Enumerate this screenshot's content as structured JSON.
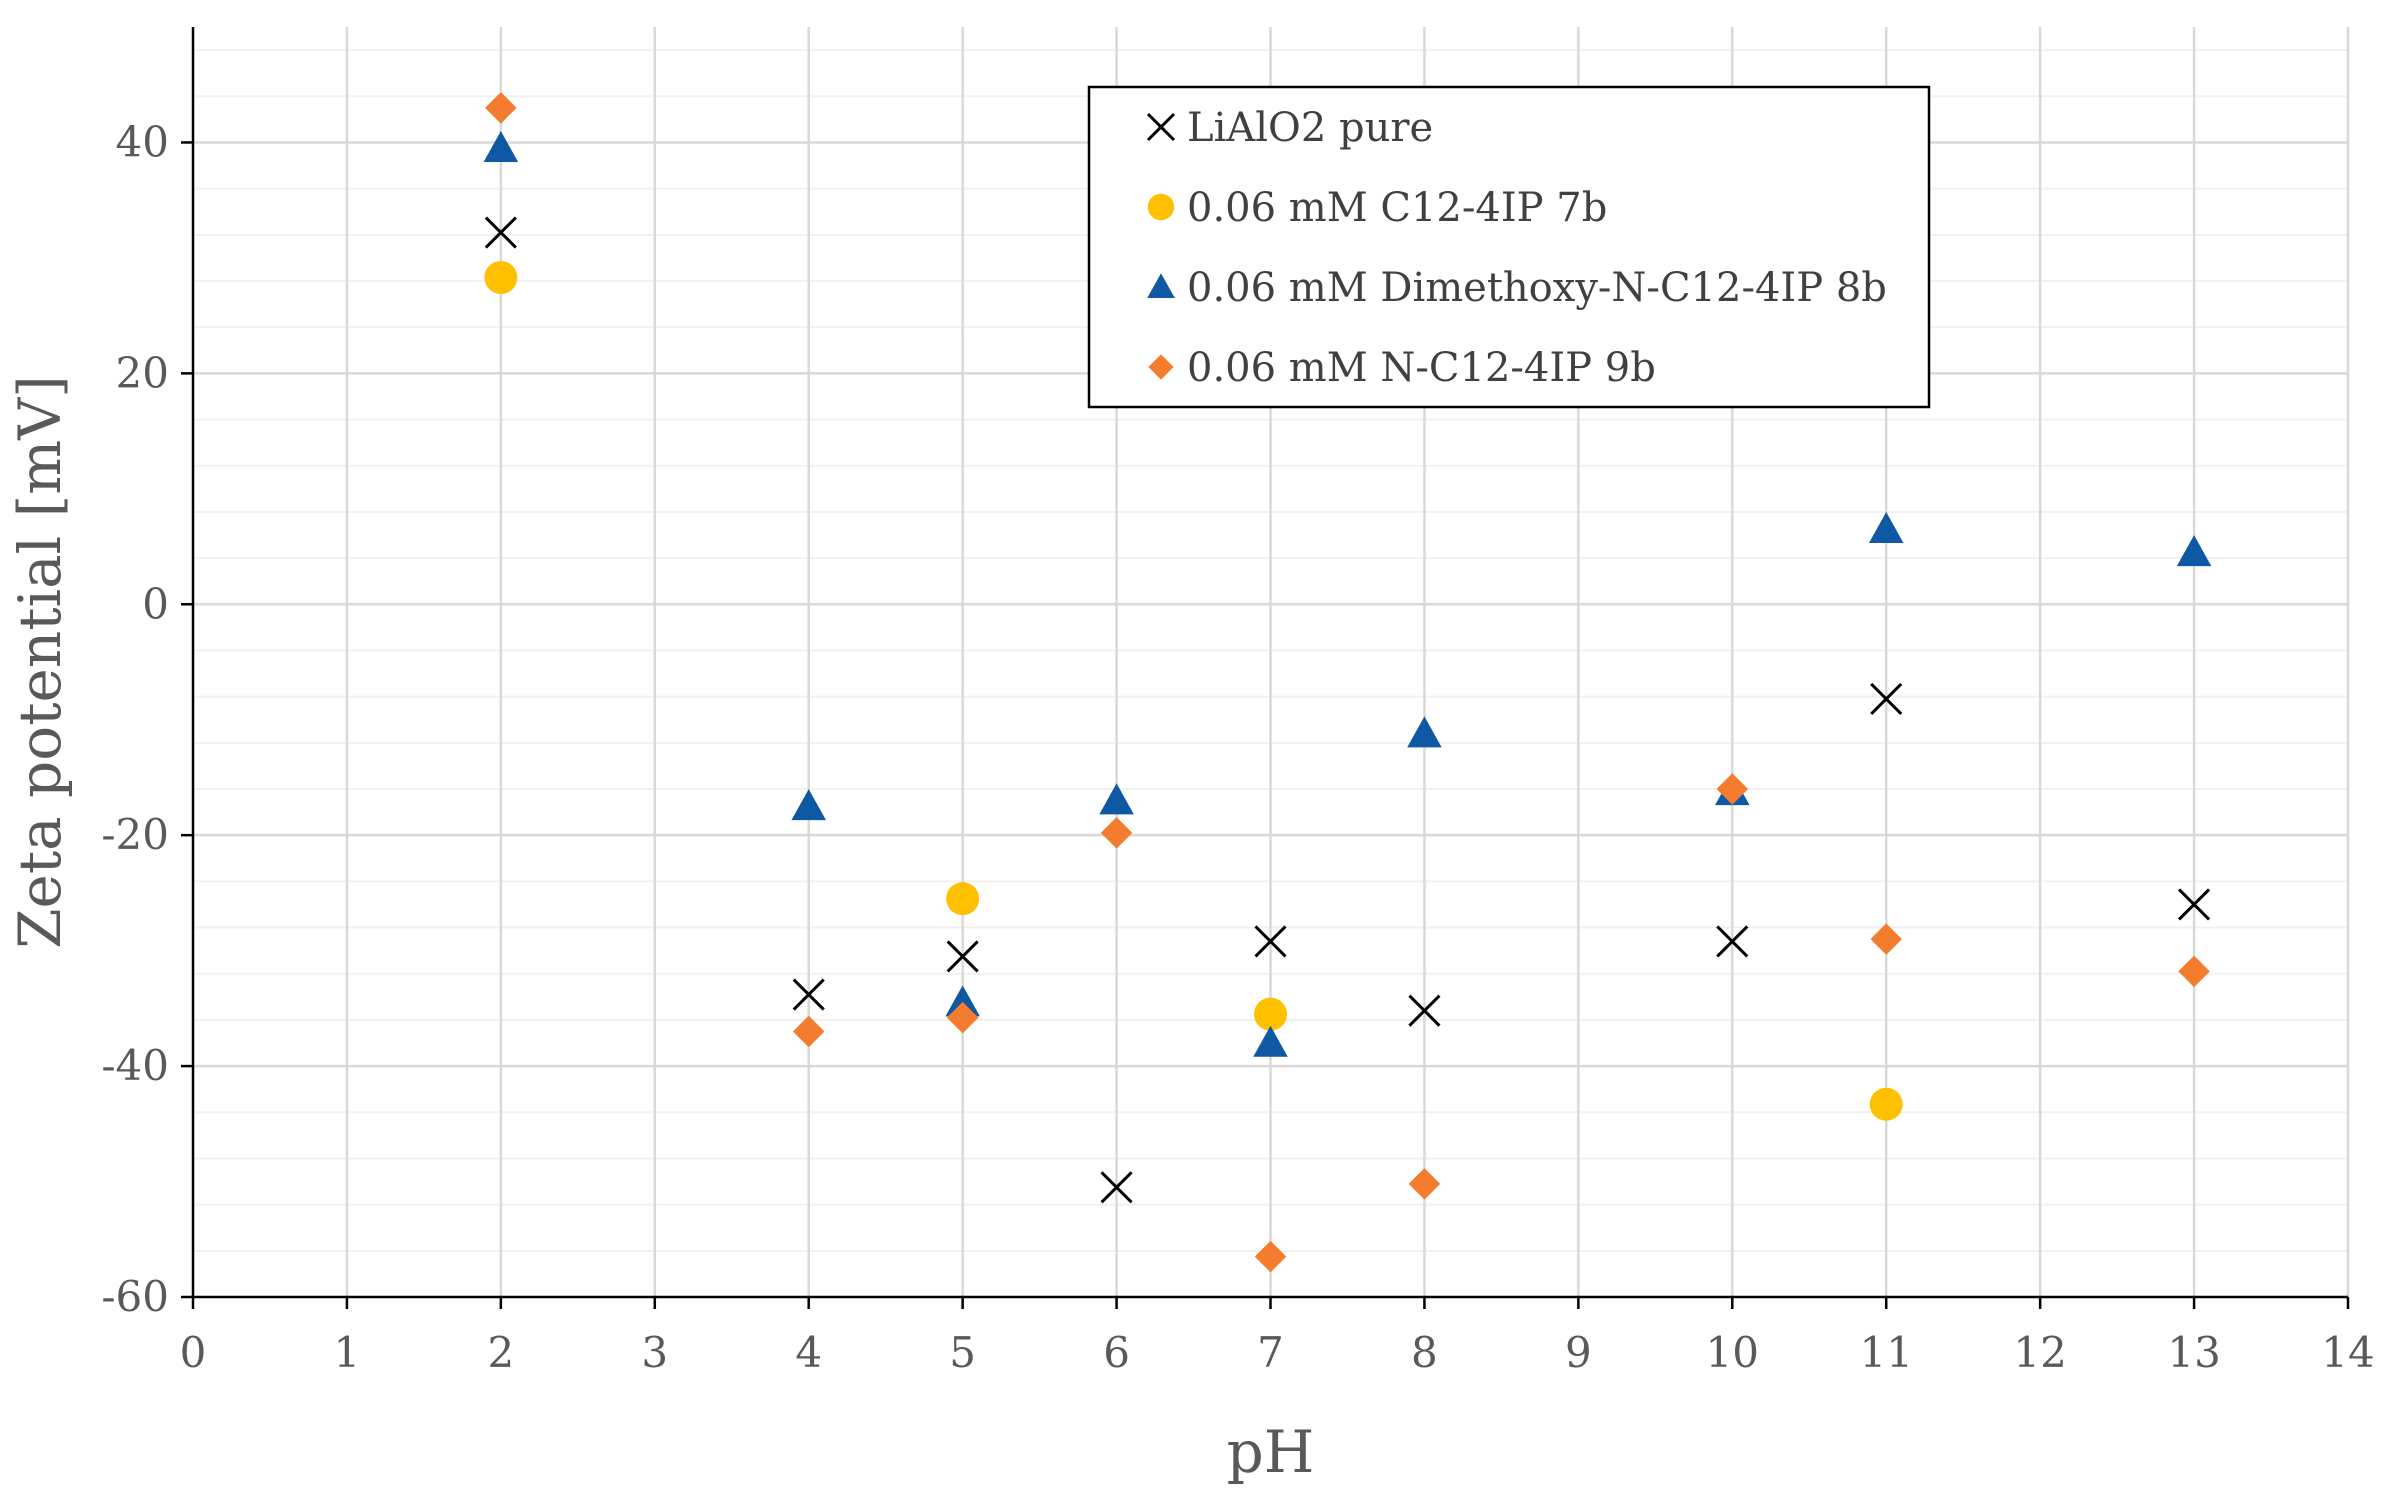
{
  "chart_data": {
    "type": "scatter",
    "title": "",
    "xlabel": "pH",
    "ylabel": "Zeta potential [mV]",
    "xlim": [
      0,
      14
    ],
    "ylim": [
      -60,
      50
    ],
    "x_ticks": [
      0,
      1,
      2,
      3,
      4,
      5,
      6,
      7,
      8,
      9,
      10,
      11,
      12,
      13,
      14
    ],
    "y_ticks": [
      -60,
      -40,
      -20,
      0,
      20,
      40
    ],
    "x_tick_labels": [
      "0",
      "1",
      "2",
      "3",
      "4",
      "5",
      "6",
      "7",
      "8",
      "9",
      "10",
      "11",
      "12",
      "13",
      "14"
    ],
    "y_tick_labels": [
      "-60",
      "-40",
      "-20",
      "0",
      "20",
      "40"
    ],
    "grid": true,
    "legend_position": "top-center",
    "series": [
      {
        "name": "LiAlO2 pure",
        "marker": "x",
        "color": "#000000",
        "points": [
          {
            "x": 2,
            "y": 32.2
          },
          {
            "x": 4,
            "y": -33.8
          },
          {
            "x": 5,
            "y": -30.5
          },
          {
            "x": 6,
            "y": -50.5
          },
          {
            "x": 7,
            "y": -29.2
          },
          {
            "x": 8,
            "y": -35.2
          },
          {
            "x": 10,
            "y": -29.2
          },
          {
            "x": 11,
            "y": -8.2
          },
          {
            "x": 13,
            "y": -26
          }
        ]
      },
      {
        "name": "0.06 mM C12-4IP 7b",
        "marker": "circle",
        "color": "#FFC000",
        "points": [
          {
            "x": 2,
            "y": 28.3
          },
          {
            "x": 5,
            "y": -25.5
          },
          {
            "x": 7,
            "y": -35.5
          },
          {
            "x": 11,
            "y": -43.3
          }
        ]
      },
      {
        "name": "0.06 mM Dimethoxy-N-C12-4IP 8b",
        "marker": "triangle",
        "color": "#0F58A3",
        "points": [
          {
            "x": 2,
            "y": 39.5
          },
          {
            "x": 4,
            "y": -17.5
          },
          {
            "x": 5,
            "y": -34.5
          },
          {
            "x": 6,
            "y": -17
          },
          {
            "x": 7,
            "y": -38
          },
          {
            "x": 8,
            "y": -11.2
          },
          {
            "x": 10,
            "y": -16.2
          },
          {
            "x": 11,
            "y": 6.5
          },
          {
            "x": 13,
            "y": 4.5
          }
        ]
      },
      {
        "name": "0.06 mM N-C12-4IP 9b",
        "marker": "diamond",
        "color": "#F47C2F",
        "points": [
          {
            "x": 2,
            "y": 43
          },
          {
            "x": 4,
            "y": -37
          },
          {
            "x": 5,
            "y": -35.8
          },
          {
            "x": 6,
            "y": -19.8
          },
          {
            "x": 7,
            "y": -56.5
          },
          {
            "x": 8,
            "y": -50.2
          },
          {
            "x": 10,
            "y": -16
          },
          {
            "x": 11,
            "y": -29
          },
          {
            "x": 13,
            "y": -31.8
          }
        ]
      }
    ]
  }
}
